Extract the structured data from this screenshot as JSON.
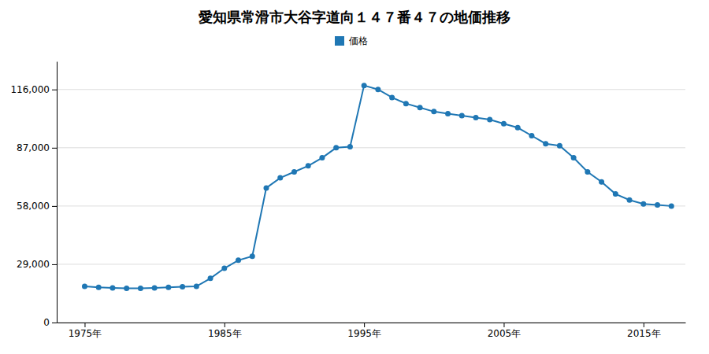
{
  "chart_data": {
    "type": "line",
    "title": "愛知県常滑市大谷字道向１４７番４７の地価推移",
    "x": [
      1975,
      1976,
      1977,
      1978,
      1979,
      1980,
      1981,
      1982,
      1983,
      1984,
      1985,
      1986,
      1987,
      1988,
      1989,
      1990,
      1991,
      1992,
      1993,
      1994,
      1995,
      1996,
      1997,
      1998,
      1999,
      2000,
      2001,
      2002,
      2003,
      2004,
      2005,
      2006,
      2007,
      2008,
      2009,
      2010,
      2011,
      2012,
      2013,
      2014,
      2015,
      2016,
      2017
    ],
    "series": [
      {
        "name": "価格",
        "marker": "circle",
        "values": [
          18000,
          17500,
          17200,
          17000,
          17000,
          17200,
          17500,
          17800,
          18000,
          22000,
          27000,
          31000,
          33000,
          67000,
          72000,
          75000,
          78000,
          82000,
          87000,
          87500,
          118000,
          116000,
          112000,
          109000,
          107000,
          105000,
          104000,
          103000,
          102000,
          101000,
          99000,
          97000,
          93000,
          89000,
          88000,
          82000,
          75000,
          70000,
          64000,
          61000,
          59000,
          58500,
          58000
        ]
      }
    ],
    "xlim": [
      1973,
      2018
    ],
    "xticks": [
      {
        "value": 1975,
        "label": "1975年"
      },
      {
        "value": 1985,
        "label": "1985年"
      },
      {
        "value": 1995,
        "label": "1995年"
      },
      {
        "value": 2005,
        "label": "2005年"
      },
      {
        "value": 2015,
        "label": "2015年"
      }
    ],
    "ylim": [
      0,
      130000
    ],
    "yticks": [
      0,
      {
        "value": 29000,
        "label": "29,000"
      },
      {
        "value": 58000,
        "label": "58,000"
      },
      {
        "value": 87000,
        "label": "87,000"
      },
      {
        "value": 116000,
        "label": "116,000"
      }
    ],
    "grid": true,
    "legend": "top"
  }
}
